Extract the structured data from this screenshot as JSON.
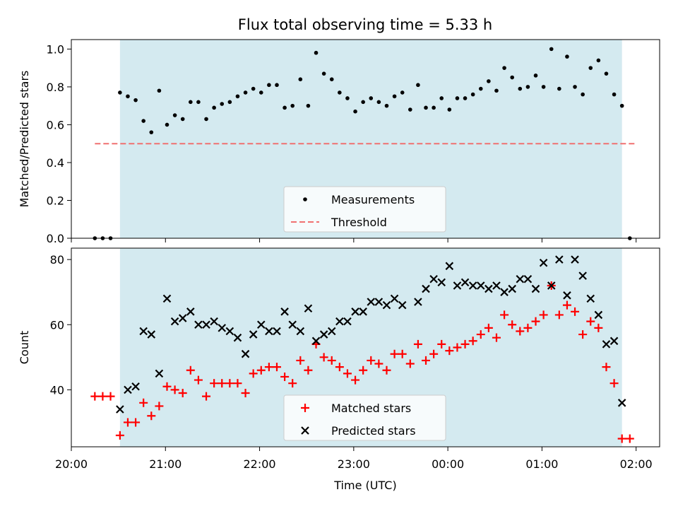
{
  "title": "Flux total observing time = 5.33 h",
  "colors": {
    "night_shade": "#d4eaf0",
    "measurements": "#000000",
    "threshold": "#f07070",
    "matched": "#ff0000",
    "predicted": "#000000"
  },
  "chart_data": [
    {
      "type": "scatter",
      "ylabel": "Matched/Predicted stars",
      "ylim": [
        0,
        1.05
      ],
      "yticks": [
        "0.0",
        "0.2",
        "0.4",
        "0.6",
        "0.8",
        "1.0"
      ],
      "xlim": [
        "20:00",
        "02:15"
      ],
      "shaded_range": [
        "20:31",
        "01:51"
      ],
      "legend": {
        "placement": "lower center",
        "entries": [
          "Measurements",
          "Threshold"
        ]
      },
      "series": [
        {
          "name": "Measurements",
          "marker": "dot",
          "points": [
            [
              "20:15",
              0.0
            ],
            [
              "20:20",
              0.0
            ],
            [
              "20:25",
              0.0
            ],
            [
              "20:31",
              0.77
            ],
            [
              "20:36",
              0.75
            ],
            [
              "20:41",
              0.73
            ],
            [
              "20:46",
              0.62
            ],
            [
              "20:51",
              0.56
            ],
            [
              "20:56",
              0.78
            ],
            [
              "21:01",
              0.6
            ],
            [
              "21:06",
              0.65
            ],
            [
              "21:11",
              0.63
            ],
            [
              "21:16",
              0.72
            ],
            [
              "21:21",
              0.72
            ],
            [
              "21:26",
              0.63
            ],
            [
              "21:31",
              0.69
            ],
            [
              "21:36",
              0.71
            ],
            [
              "21:41",
              0.72
            ],
            [
              "21:46",
              0.75
            ],
            [
              "21:51",
              0.77
            ],
            [
              "21:56",
              0.79
            ],
            [
              "22:01",
              0.77
            ],
            [
              "22:06",
              0.81
            ],
            [
              "22:11",
              0.81
            ],
            [
              "22:16",
              0.69
            ],
            [
              "22:21",
              0.7
            ],
            [
              "22:26",
              0.84
            ],
            [
              "22:31",
              0.7
            ],
            [
              "22:36",
              0.98
            ],
            [
              "22:41",
              0.87
            ],
            [
              "22:46",
              0.84
            ],
            [
              "22:51",
              0.77
            ],
            [
              "22:56",
              0.74
            ],
            [
              "23:01",
              0.67
            ],
            [
              "23:06",
              0.72
            ],
            [
              "23:11",
              0.74
            ],
            [
              "23:16",
              0.72
            ],
            [
              "23:21",
              0.7
            ],
            [
              "23:26",
              0.75
            ],
            [
              "23:31",
              0.77
            ],
            [
              "23:36",
              0.68
            ],
            [
              "23:41",
              0.81
            ],
            [
              "23:46",
              0.69
            ],
            [
              "23:51",
              0.69
            ],
            [
              "23:56",
              0.74
            ],
            [
              "00:01",
              0.68
            ],
            [
              "00:06",
              0.74
            ],
            [
              "00:11",
              0.74
            ],
            [
              "00:16",
              0.76
            ],
            [
              "00:21",
              0.79
            ],
            [
              "00:26",
              0.83
            ],
            [
              "00:31",
              0.78
            ],
            [
              "00:36",
              0.9
            ],
            [
              "00:41",
              0.85
            ],
            [
              "00:46",
              0.79
            ],
            [
              "00:51",
              0.8
            ],
            [
              "00:56",
              0.86
            ],
            [
              "01:01",
              0.8
            ],
            [
              "01:06",
              1.0
            ],
            [
              "01:11",
              0.79
            ],
            [
              "01:16",
              0.96
            ],
            [
              "01:21",
              0.8
            ],
            [
              "01:26",
              0.76
            ],
            [
              "01:31",
              0.9
            ],
            [
              "01:36",
              0.94
            ],
            [
              "01:41",
              0.87
            ],
            [
              "01:46",
              0.76
            ],
            [
              "01:51",
              0.7
            ],
            [
              "01:56",
              0.0
            ]
          ]
        },
        {
          "name": "Threshold",
          "style": "dashed",
          "y": 0.5,
          "x_range": [
            "20:15",
            "01:59"
          ]
        }
      ]
    },
    {
      "type": "scatter",
      "xlabel": "Time (UTC)",
      "ylabel": "Count",
      "ylim": [
        22.5,
        83.5
      ],
      "yticks": [
        "40",
        "60",
        "80"
      ],
      "xlim": [
        "20:00",
        "02:15"
      ],
      "xticks": [
        "20:00",
        "21:00",
        "22:00",
        "23:00",
        "00:00",
        "01:00",
        "02:00"
      ],
      "shaded_range": [
        "20:31",
        "01:51"
      ],
      "legend": {
        "placement": "lower center",
        "entries": [
          "Matched stars",
          "Predicted stars"
        ]
      },
      "series": [
        {
          "name": "Matched stars",
          "marker": "plus",
          "points": [
            [
              "20:15",
              38
            ],
            [
              "20:20",
              38
            ],
            [
              "20:25",
              38
            ],
            [
              "20:31",
              26
            ],
            [
              "20:36",
              30
            ],
            [
              "20:41",
              30
            ],
            [
              "20:46",
              36
            ],
            [
              "20:51",
              32
            ],
            [
              "20:56",
              35
            ],
            [
              "21:01",
              41
            ],
            [
              "21:06",
              40
            ],
            [
              "21:11",
              39
            ],
            [
              "21:16",
              46
            ],
            [
              "21:21",
              43
            ],
            [
              "21:26",
              38
            ],
            [
              "21:31",
              42
            ],
            [
              "21:36",
              42
            ],
            [
              "21:41",
              42
            ],
            [
              "21:46",
              42
            ],
            [
              "21:51",
              39
            ],
            [
              "21:56",
              45
            ],
            [
              "22:01",
              46
            ],
            [
              "22:06",
              47
            ],
            [
              "22:11",
              47
            ],
            [
              "22:16",
              44
            ],
            [
              "22:21",
              42
            ],
            [
              "22:26",
              49
            ],
            [
              "22:31",
              46
            ],
            [
              "22:36",
              54
            ],
            [
              "22:41",
              50
            ],
            [
              "22:46",
              49
            ],
            [
              "22:51",
              47
            ],
            [
              "22:56",
              45
            ],
            [
              "23:01",
              43
            ],
            [
              "23:06",
              46
            ],
            [
              "23:11",
              49
            ],
            [
              "23:16",
              48
            ],
            [
              "23:21",
              46
            ],
            [
              "23:26",
              51
            ],
            [
              "23:31",
              51
            ],
            [
              "23:36",
              48
            ],
            [
              "23:41",
              54
            ],
            [
              "23:46",
              49
            ],
            [
              "23:51",
              51
            ],
            [
              "23:56",
              54
            ],
            [
              "00:01",
              52
            ],
            [
              "00:06",
              53
            ],
            [
              "00:11",
              54
            ],
            [
              "00:16",
              55
            ],
            [
              "00:21",
              57
            ],
            [
              "00:26",
              59
            ],
            [
              "00:31",
              56
            ],
            [
              "00:36",
              63
            ],
            [
              "00:41",
              60
            ],
            [
              "00:46",
              58
            ],
            [
              "00:51",
              59
            ],
            [
              "00:56",
              61
            ],
            [
              "01:01",
              63
            ],
            [
              "01:06",
              72
            ],
            [
              "01:11",
              63
            ],
            [
              "01:16",
              66
            ],
            [
              "01:21",
              64
            ],
            [
              "01:26",
              57
            ],
            [
              "01:31",
              61
            ],
            [
              "01:36",
              59
            ],
            [
              "01:41",
              47
            ],
            [
              "01:46",
              42
            ],
            [
              "01:51",
              25
            ],
            [
              "01:56",
              25
            ]
          ]
        },
        {
          "name": "Predicted stars",
          "marker": "x",
          "points": [
            [
              "20:31",
              34
            ],
            [
              "20:36",
              40
            ],
            [
              "20:41",
              41
            ],
            [
              "20:46",
              58
            ],
            [
              "20:51",
              57
            ],
            [
              "20:56",
              45
            ],
            [
              "21:01",
              68
            ],
            [
              "21:06",
              61
            ],
            [
              "21:11",
              62
            ],
            [
              "21:16",
              64
            ],
            [
              "21:21",
              60
            ],
            [
              "21:26",
              60
            ],
            [
              "21:31",
              61
            ],
            [
              "21:36",
              59
            ],
            [
              "21:41",
              58
            ],
            [
              "21:46",
              56
            ],
            [
              "21:51",
              51
            ],
            [
              "21:56",
              57
            ],
            [
              "22:01",
              60
            ],
            [
              "22:06",
              58
            ],
            [
              "22:11",
              58
            ],
            [
              "22:16",
              64
            ],
            [
              "22:21",
              60
            ],
            [
              "22:26",
              58
            ],
            [
              "22:31",
              65
            ],
            [
              "22:36",
              55
            ],
            [
              "22:41",
              57
            ],
            [
              "22:46",
              58
            ],
            [
              "22:51",
              61
            ],
            [
              "22:56",
              61
            ],
            [
              "23:01",
              64
            ],
            [
              "23:06",
              64
            ],
            [
              "23:11",
              67
            ],
            [
              "23:16",
              67
            ],
            [
              "23:21",
              66
            ],
            [
              "23:26",
              68
            ],
            [
              "23:31",
              66
            ],
            [
              "23:41",
              67
            ],
            [
              "23:46",
              71
            ],
            [
              "23:51",
              74
            ],
            [
              "23:56",
              73
            ],
            [
              "00:01",
              78
            ],
            [
              "00:06",
              72
            ],
            [
              "00:11",
              73
            ],
            [
              "00:16",
              72
            ],
            [
              "00:21",
              72
            ],
            [
              "00:26",
              71
            ],
            [
              "00:31",
              72
            ],
            [
              "00:36",
              70
            ],
            [
              "00:41",
              71
            ],
            [
              "00:46",
              74
            ],
            [
              "00:51",
              74
            ],
            [
              "00:56",
              71
            ],
            [
              "01:01",
              79
            ],
            [
              "01:06",
              72
            ],
            [
              "01:11",
              80
            ],
            [
              "01:16",
              69
            ],
            [
              "01:21",
              80
            ],
            [
              "01:26",
              75
            ],
            [
              "01:31",
              68
            ],
            [
              "01:36",
              63
            ],
            [
              "01:41",
              54
            ],
            [
              "01:46",
              55
            ],
            [
              "01:51",
              36
            ]
          ]
        }
      ]
    }
  ]
}
